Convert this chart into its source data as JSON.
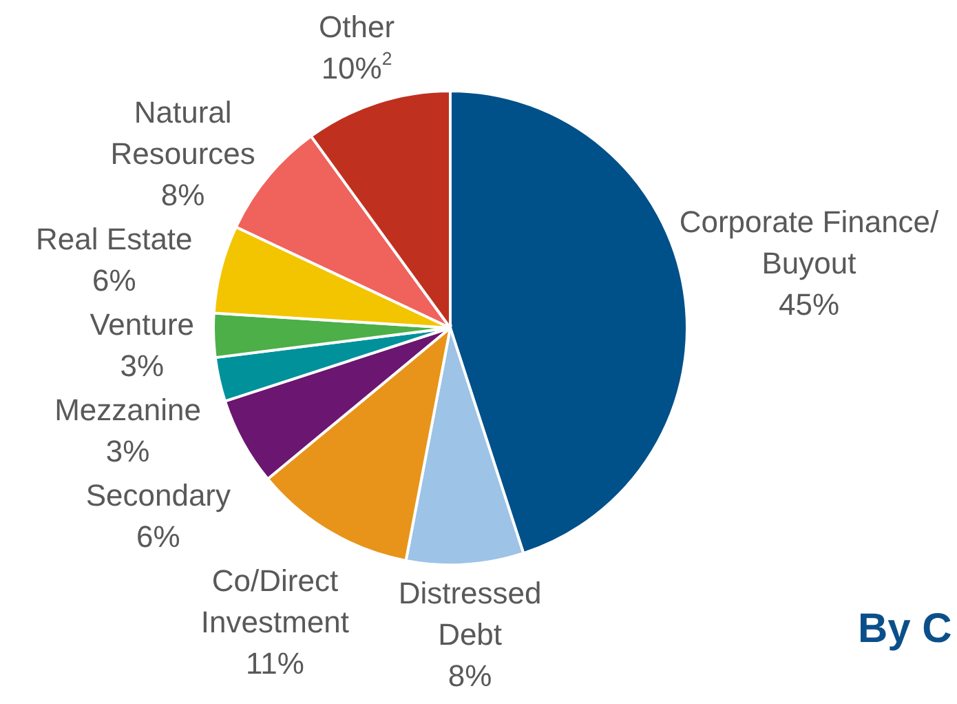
{
  "chart_data": {
    "type": "pie",
    "categories": [
      "Corporate Finance/ Buyout",
      "Distressed Debt",
      "Co/Direct Investment",
      "Secondary",
      "Mezzanine",
      "Venture",
      "Real Estate",
      "Natural Resources",
      "Other"
    ],
    "values": [
      45,
      8,
      11,
      6,
      3,
      3,
      6,
      8,
      10
    ],
    "value_labels": [
      "45%",
      "8%",
      "11%",
      "6%",
      "3%",
      "3%",
      "6%",
      "8%",
      "10%$^{2}$"
    ],
    "colors": [
      "#00508a",
      "#9dc3e6",
      "#e8941a",
      "#6b1670",
      "#00919a",
      "#4caf48",
      "#f2c500",
      "#f0625c",
      "#c0301e"
    ],
    "annotations": [
      "By C"
    ]
  }
}
